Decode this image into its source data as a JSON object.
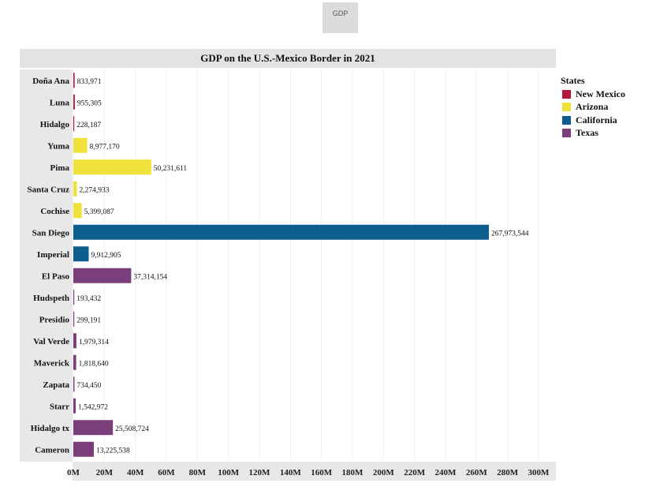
{
  "tab": {
    "label": "GDP"
  },
  "chart_data": {
    "type": "bar",
    "orientation": "horizontal",
    "title": "GDP on the U.S.-Mexico Border in 2021",
    "xlabel": "",
    "ylabel": "",
    "xlim": [
      0,
      300000000
    ],
    "ticks": [
      {
        "value": 0,
        "label": "0M"
      },
      {
        "value": 20000000,
        "label": "20M"
      },
      {
        "value": 40000000,
        "label": "40M"
      },
      {
        "value": 60000000,
        "label": "60M"
      },
      {
        "value": 80000000,
        "label": "80M"
      },
      {
        "value": 100000000,
        "label": "100M"
      },
      {
        "value": 120000000,
        "label": "120M"
      },
      {
        "value": 140000000,
        "label": "140M"
      },
      {
        "value": 160000000,
        "label": "160M"
      },
      {
        "value": 180000000,
        "label": "180M"
      },
      {
        "value": 200000000,
        "label": "200M"
      },
      {
        "value": 220000000,
        "label": "220M"
      },
      {
        "value": 240000000,
        "label": "240M"
      },
      {
        "value": 260000000,
        "label": "260M"
      },
      {
        "value": 280000000,
        "label": "280M"
      },
      {
        "value": 300000000,
        "label": "300M"
      }
    ],
    "grid": true,
    "legend_position": "right",
    "legend_title": "States",
    "series": [
      {
        "name": "New Mexico",
        "color": "#b5183c"
      },
      {
        "name": "Arizona",
        "color": "#f0e23a"
      },
      {
        "name": "California",
        "color": "#0d5e8f"
      },
      {
        "name": "Texas",
        "color": "#7a3f7a"
      }
    ],
    "bars": [
      {
        "category": "Doña Ana",
        "state": "New Mexico",
        "value": 833971,
        "label": "833,971"
      },
      {
        "category": "Luna",
        "state": "New Mexico",
        "value": 955305,
        "label": "955,305"
      },
      {
        "category": "Hidalgo",
        "state": "New Mexico",
        "value": 228187,
        "label": "228,187"
      },
      {
        "category": "Yuma",
        "state": "Arizona",
        "value": 8977170,
        "label": "8,977,170"
      },
      {
        "category": "Pima",
        "state": "Arizona",
        "value": 50231611,
        "label": "50,231,611"
      },
      {
        "category": "Santa Cruz",
        "state": "Arizona",
        "value": 2274933,
        "label": "2,274,933"
      },
      {
        "category": "Cochise",
        "state": "Arizona",
        "value": 5399087,
        "label": "5,399,087"
      },
      {
        "category": "San Diego",
        "state": "California",
        "value": 267973544,
        "label": "267,973,544"
      },
      {
        "category": "Imperial",
        "state": "California",
        "value": 9912905,
        "label": "9,912,905"
      },
      {
        "category": "El Paso",
        "state": "Texas",
        "value": 37314154,
        "label": "37,314,154"
      },
      {
        "category": "Hudspeth",
        "state": "Texas",
        "value": 193432,
        "label": "193,432"
      },
      {
        "category": "Presidio",
        "state": "Texas",
        "value": 299191,
        "label": "299,191"
      },
      {
        "category": "Val Verde",
        "state": "Texas",
        "value": 1979314,
        "label": "1,979,314"
      },
      {
        "category": "Maverick",
        "state": "Texas",
        "value": 1818640,
        "label": "1,818,640"
      },
      {
        "category": "Zapata",
        "state": "Texas",
        "value": 734450,
        "label": "734,450"
      },
      {
        "category": "Starr",
        "state": "Texas",
        "value": 1542972,
        "label": "1,542,972"
      },
      {
        "category": "Hidalgo tx",
        "state": "Texas",
        "value": 25508724,
        "label": "25,508,724"
      },
      {
        "category": "Cameron",
        "state": "Texas",
        "value": 13225538,
        "label": "13,225,538"
      }
    ]
  }
}
